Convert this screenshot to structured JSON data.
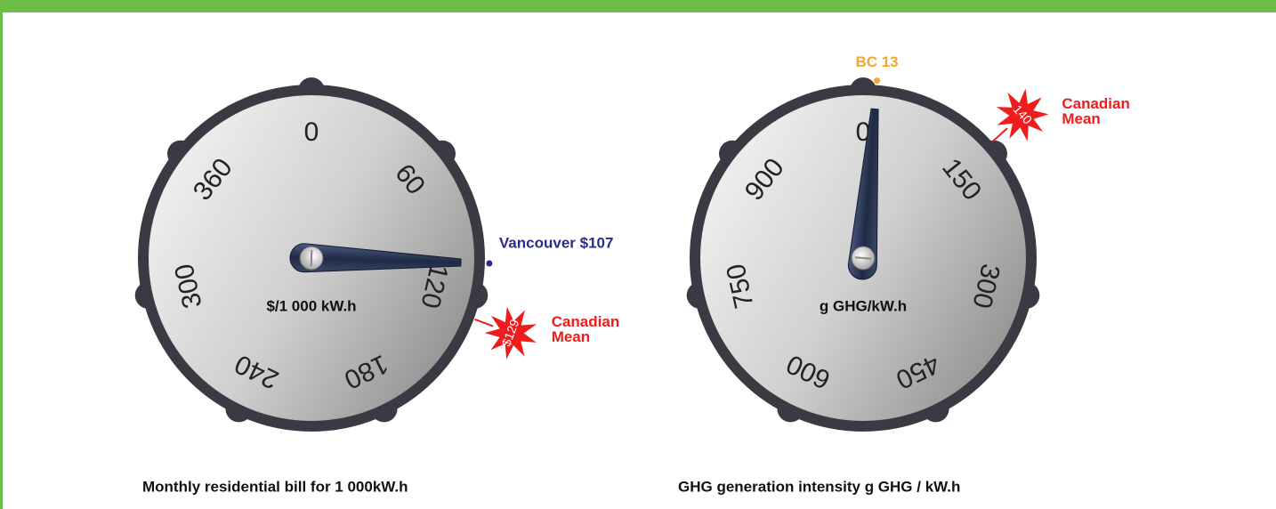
{
  "chart_data": [
    {
      "type": "gauge",
      "unit_label": "$/1 000 kW.h",
      "caption": "Monthly residential bill for 1 000kW.h",
      "lim": [
        0,
        420
      ],
      "ticks": [
        0,
        60,
        120,
        180,
        240,
        300,
        360
      ],
      "needle": 107,
      "markers": [
        {
          "style": "dot",
          "label": "Vancouver $107",
          "value": 107,
          "color": "#2b2b8c"
        },
        {
          "style": "leaf",
          "label": [
            "Canadian",
            "Mean"
          ],
          "value": 129,
          "value_label": "$129",
          "color": "#ee1c1c"
        }
      ]
    },
    {
      "type": "gauge",
      "unit_label": "g GHG/kW.h",
      "caption": "GHG generation intensity g GHG / kW.h",
      "lim": [
        0,
        1050
      ],
      "ticks": [
        0,
        150,
        300,
        450,
        600,
        750,
        900
      ],
      "needle": 13,
      "markers": [
        {
          "style": "dot",
          "label": "BC 13",
          "value": 13,
          "color": "#f0a830"
        },
        {
          "style": "leaf",
          "label": [
            "Canadian",
            "Mean"
          ],
          "value": 140,
          "color": "#ee1c1c"
        }
      ]
    }
  ]
}
